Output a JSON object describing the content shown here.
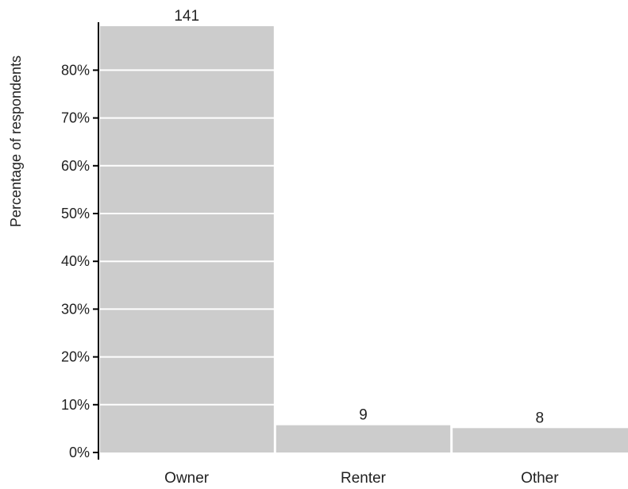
{
  "chart_data": {
    "type": "bar",
    "ylabel": "Percentage of respondents",
    "xlabel": "",
    "categories": [
      "Owner",
      "Renter",
      "Other"
    ],
    "counts": [
      141,
      9,
      8
    ],
    "values": [
      89.2,
      5.7,
      5.1
    ],
    "data_labels": [
      "141",
      "9",
      "8"
    ],
    "y_ticks": [
      0,
      10,
      20,
      30,
      40,
      50,
      60,
      70,
      80
    ],
    "y_tick_labels": [
      "0%",
      "10%",
      "20%",
      "30%",
      "40%",
      "50%",
      "60%",
      "70%",
      "80%"
    ],
    "ylim": [
      0,
      90
    ],
    "grid": true,
    "legend": "none",
    "colors": {
      "bar": "#cccccc",
      "grid": "#ffffff",
      "axis": "#000000",
      "text": "#222222"
    }
  }
}
